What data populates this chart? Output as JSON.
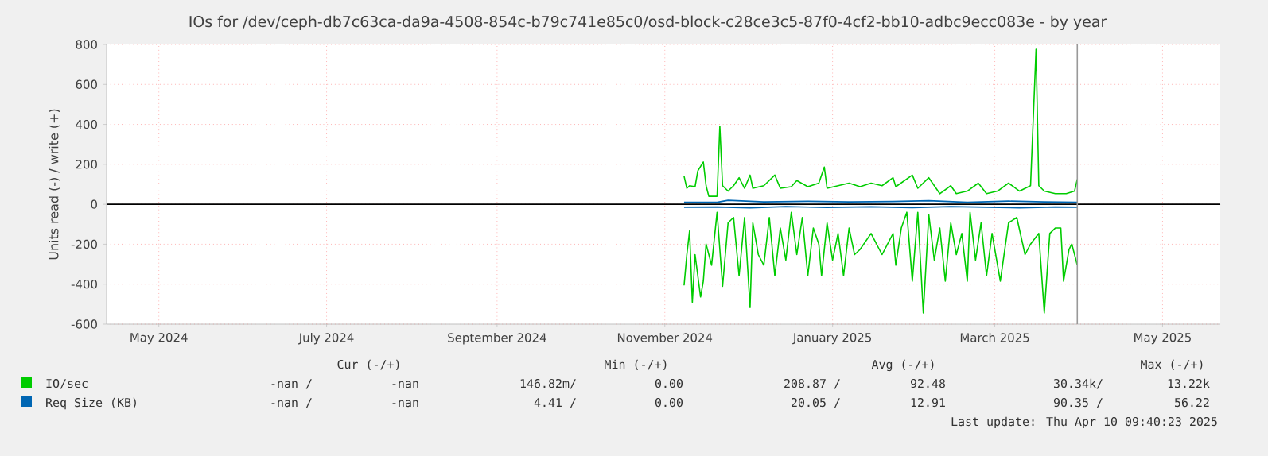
{
  "chart_data": {
    "type": "line",
    "title": "IOs for /dev/ceph-db7c63ca-da9a-4508-854c-b79c741e85c0/osd-block-c28ce3c5-87f0-4cf2-bb10-adbc9ecc083e - by year",
    "ylabel": "Units read (-) / write (+)",
    "xlim": [
      "2024-04-12",
      "2025-05-22"
    ],
    "xticks": [
      {
        "value": "2024-05-01",
        "label": "May 2024"
      },
      {
        "value": "2024-07-01",
        "label": "July 2024"
      },
      {
        "value": "2024-09-01",
        "label": "September 2024"
      },
      {
        "value": "2024-11-01",
        "label": "November 2024"
      },
      {
        "value": "2025-01-01",
        "label": "January 2025"
      },
      {
        "value": "2025-03-01",
        "label": "March 2025"
      },
      {
        "value": "2025-05-01",
        "label": "May 2025"
      }
    ],
    "ylim": [
      -600,
      800
    ],
    "yticks": [
      -600,
      -400,
      -200,
      0,
      200,
      400,
      600,
      800
    ],
    "grid": true,
    "legend": "bottom",
    "series": [
      {
        "name": "IO/sec",
        "color": "#00cc00",
        "x": [
          "2024-11-08",
          "2024-11-09",
          "2024-11-10",
          "2024-11-12",
          "2024-11-13",
          "2024-11-15",
          "2024-11-16",
          "2024-11-17",
          "2024-11-20",
          "2024-11-21",
          "2024-11-22",
          "2024-11-24",
          "2024-11-26",
          "2024-11-28",
          "2024-11-30",
          "2024-12-02",
          "2024-12-03",
          "2024-12-07",
          "2024-12-11",
          "2024-12-13",
          "2024-12-17",
          "2024-12-19",
          "2024-12-23",
          "2024-12-27",
          "2024-12-29",
          "2024-12-30",
          "2025-01-03",
          "2025-01-07",
          "2025-01-11",
          "2025-01-15",
          "2025-01-19",
          "2025-01-23",
          "2025-01-24",
          "2025-01-30",
          "2025-02-01",
          "2025-02-05",
          "2025-02-09",
          "2025-02-13",
          "2025-02-15",
          "2025-02-19",
          "2025-02-23",
          "2025-02-26",
          "2025-03-02",
          "2025-03-06",
          "2025-03-10",
          "2025-03-14",
          "2025-03-16",
          "2025-03-17",
          "2025-03-19",
          "2025-03-23",
          "2025-03-27",
          "2025-03-30",
          "2025-03-31"
        ],
        "values": [
          140,
          80,
          93,
          88,
          167,
          212,
          93,
          40,
          40,
          390,
          93,
          66,
          93,
          133,
          80,
          146,
          80,
          93,
          146,
          80,
          88,
          119,
          88,
          106,
          186,
          80,
          93,
          106,
          88,
          106,
          93,
          133,
          88,
          146,
          80,
          133,
          53,
          93,
          53,
          66,
          106,
          53,
          66,
          106,
          66,
          93,
          776,
          93,
          66,
          53,
          53,
          66,
          125
        ]
      },
      {
        "color": "#00cc00",
        "x": [
          "2024-11-08",
          "2024-11-09",
          "2024-11-10",
          "2024-11-11",
          "2024-11-12",
          "2024-11-14",
          "2024-11-15",
          "2024-11-16",
          "2024-11-18",
          "2024-11-20",
          "2024-11-22",
          "2024-11-24",
          "2024-11-26",
          "2024-11-28",
          "2024-11-30",
          "2024-12-02",
          "2024-12-03",
          "2024-12-05",
          "2024-12-07",
          "2024-12-09",
          "2024-12-11",
          "2024-12-13",
          "2024-12-15",
          "2024-12-17",
          "2024-12-19",
          "2024-12-21",
          "2024-12-23",
          "2024-12-25",
          "2024-12-27",
          "2024-12-28",
          "2024-12-30",
          "2025-01-01",
          "2025-01-03",
          "2025-01-05",
          "2025-01-07",
          "2025-01-09",
          "2025-01-11",
          "2025-01-15",
          "2025-01-19",
          "2025-01-23",
          "2025-01-24",
          "2025-01-26",
          "2025-01-28",
          "2025-01-30",
          "2025-02-01",
          "2025-02-03",
          "2025-02-05",
          "2025-02-07",
          "2025-02-09",
          "2025-02-11",
          "2025-02-13",
          "2025-02-15",
          "2025-02-17",
          "2025-02-19",
          "2025-02-20",
          "2025-02-22",
          "2025-02-24",
          "2025-02-26",
          "2025-02-28",
          "2025-03-03",
          "2025-03-06",
          "2025-03-09",
          "2025-03-12",
          "2025-03-14",
          "2025-03-17",
          "2025-03-19",
          "2025-03-21",
          "2025-03-23",
          "2025-03-25",
          "2025-03-26",
          "2025-03-28",
          "2025-03-29",
          "2025-03-31"
        ],
        "values": [
          -406,
          -252,
          -133,
          -491,
          -252,
          -464,
          -385,
          -199,
          -305,
          -40,
          -411,
          -93,
          -66,
          -358,
          -66,
          -517,
          -93,
          -252,
          -305,
          -66,
          -358,
          -119,
          -279,
          -40,
          -252,
          -66,
          -358,
          -119,
          -199,
          -358,
          -93,
          -279,
          -146,
          -358,
          -119,
          -252,
          -226,
          -146,
          -252,
          -146,
          -305,
          -119,
          -40,
          -385,
          -40,
          -544,
          -53,
          -279,
          -119,
          -385,
          -93,
          -252,
          -146,
          -385,
          -40,
          -279,
          -93,
          -358,
          -146,
          -385,
          -93,
          -66,
          -252,
          -199,
          -146,
          -544,
          -146,
          -119,
          -119,
          -385,
          -226,
          -199,
          -305
        ]
      },
      {
        "name": "Req Size (KB)",
        "color": "#0066b3",
        "x": [
          "2024-11-08",
          "2024-11-20",
          "2024-11-24",
          "2024-12-07",
          "2024-12-23",
          "2025-01-07",
          "2025-01-23",
          "2025-02-05",
          "2025-02-19",
          "2025-03-06",
          "2025-03-19",
          "2025-03-31"
        ],
        "values": [
          10,
          10,
          20,
          12,
          15,
          12,
          14,
          18,
          10,
          16,
          12,
          10
        ]
      },
      {
        "color": "#0066b3",
        "x": [
          "2024-11-08",
          "2024-11-20",
          "2024-12-02",
          "2024-12-15",
          "2024-12-30",
          "2025-01-15",
          "2025-01-30",
          "2025-02-13",
          "2025-02-26",
          "2025-03-10",
          "2025-03-23",
          "2025-03-31"
        ],
        "values": [
          -15,
          -14,
          -18,
          -12,
          -16,
          -13,
          -17,
          -12,
          -15,
          -18,
          -14,
          -15
        ]
      }
    ],
    "ref_lines": [
      {
        "axis": "y",
        "value": 0,
        "color": "#000000"
      },
      {
        "axis": "x",
        "value": "2025-03-31",
        "color": "#999999"
      }
    ],
    "annotations": [
      "Cur (-/+)",
      "Min (-/+)",
      "Avg (-/+)",
      "Max (-/+)",
      "-nan /",
      "-nan",
      "146.82m/",
      "0.00",
      "208.87 /",
      "92.48",
      "30.34k/",
      "13.22k",
      "-nan /",
      "-nan",
      "4.41 /",
      "0.00",
      "20.05 /",
      "12.91",
      "90.35 /",
      "56.22",
      "Last update: Thu Apr 10 09:40:23 2025"
    ]
  }
}
